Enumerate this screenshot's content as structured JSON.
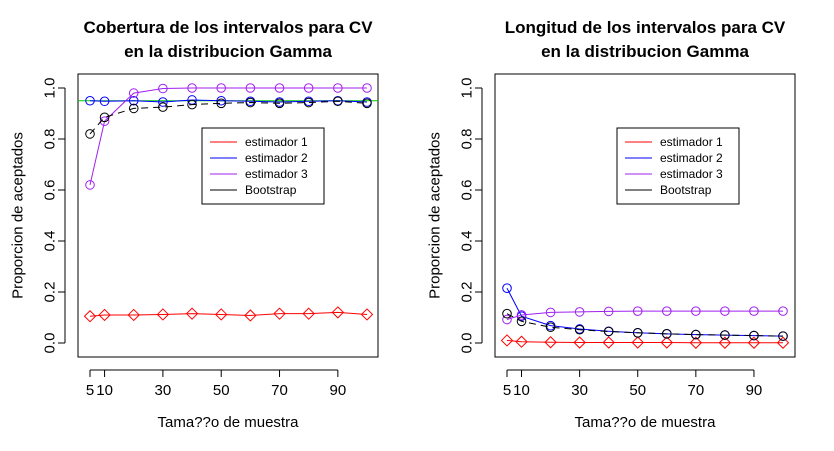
{
  "chart_data": [
    {
      "type": "line",
      "title": [
        "Cobertura de los intervalos para CV",
        "en la distribucion Gamma"
      ],
      "xlabel": "Tama??o de muestra",
      "ylabel": "Proporcion de aceptados",
      "xlim": [
        5,
        100
      ],
      "ylim": [
        0,
        1
      ],
      "xticks": [
        5,
        10,
        30,
        50,
        70,
        90
      ],
      "yticks": [
        0.0,
        0.2,
        0.4,
        0.6,
        0.8,
        1.0
      ],
      "x": [
        5,
        10,
        20,
        30,
        40,
        50,
        60,
        70,
        80,
        90,
        100
      ],
      "series": [
        {
          "name": "estimador 1",
          "color": "#ff0000",
          "marker": "diamond",
          "style": "solid",
          "values": [
            0.105,
            0.11,
            0.11,
            0.112,
            0.115,
            0.112,
            0.108,
            0.115,
            0.115,
            0.12,
            0.112
          ]
        },
        {
          "name": "estimador 2",
          "color": "#0000ff",
          "marker": "circle",
          "style": "solid",
          "values": [
            0.95,
            0.948,
            0.95,
            0.945,
            0.953,
            0.95,
            0.948,
            0.945,
            0.948,
            0.95,
            0.945
          ]
        },
        {
          "name": "estimador 3",
          "color": "#a020f0",
          "marker": "circle",
          "style": "solid",
          "values": [
            0.62,
            0.87,
            0.98,
            0.998,
            1.0,
            1.0,
            1.0,
            1.0,
            1.0,
            1.0,
            1.0
          ]
        },
        {
          "name": "Bootstrap",
          "color": "#000000",
          "marker": "circle",
          "style": "dashed",
          "values": [
            0.82,
            0.885,
            0.92,
            0.925,
            0.935,
            0.94,
            0.943,
            0.94,
            0.943,
            0.948,
            0.94
          ]
        }
      ],
      "reference_line": {
        "y": 0.95,
        "color": "#00cc00"
      },
      "legend": {
        "position": "center-right",
        "entries": [
          "estimador 1",
          "estimador 2",
          "estimador 3",
          "Bootstrap"
        ],
        "colors": [
          "#ff0000",
          "#0000ff",
          "#a020f0",
          "#000000"
        ]
      }
    },
    {
      "type": "line",
      "title": [
        "Longitud de los intervalos para CV",
        "en la distribucion Gamma"
      ],
      "xlabel": "Tama??o de muestra",
      "ylabel": "Proporcion de aceptados",
      "xlim": [
        5,
        100
      ],
      "ylim": [
        0,
        1
      ],
      "xticks": [
        5,
        10,
        30,
        50,
        70,
        90
      ],
      "yticks": [
        0.0,
        0.2,
        0.4,
        0.6,
        0.8,
        1.0
      ],
      "x": [
        5,
        10,
        20,
        30,
        40,
        50,
        60,
        70,
        80,
        90,
        100
      ],
      "series": [
        {
          "name": "estimador 1",
          "color": "#ff0000",
          "marker": "diamond",
          "style": "solid",
          "values": [
            0.01,
            0.005,
            0.003,
            0.002,
            0.002,
            0.002,
            0.002,
            0.001,
            0.001,
            0.001,
            0.001
          ]
        },
        {
          "name": "estimador 2",
          "color": "#0000ff",
          "marker": "circle",
          "style": "solid",
          "values": [
            0.215,
            0.105,
            0.068,
            0.055,
            0.046,
            0.04,
            0.036,
            0.033,
            0.031,
            0.029,
            0.027
          ]
        },
        {
          "name": "estimador 3",
          "color": "#a020f0",
          "marker": "circle",
          "style": "solid",
          "values": [
            0.092,
            0.11,
            0.12,
            0.122,
            0.124,
            0.125,
            0.125,
            0.125,
            0.125,
            0.125,
            0.125
          ]
        },
        {
          "name": "Bootstrap",
          "color": "#000000",
          "marker": "circle",
          "style": "dashed",
          "values": [
            0.115,
            0.085,
            0.062,
            0.052,
            0.045,
            0.04,
            0.036,
            0.033,
            0.031,
            0.029,
            0.027
          ]
        }
      ],
      "legend": {
        "position": "center-right",
        "entries": [
          "estimador 1",
          "estimador 2",
          "estimador 3",
          "Bootstrap"
        ],
        "colors": [
          "#ff0000",
          "#0000ff",
          "#a020f0",
          "#000000"
        ]
      }
    }
  ]
}
